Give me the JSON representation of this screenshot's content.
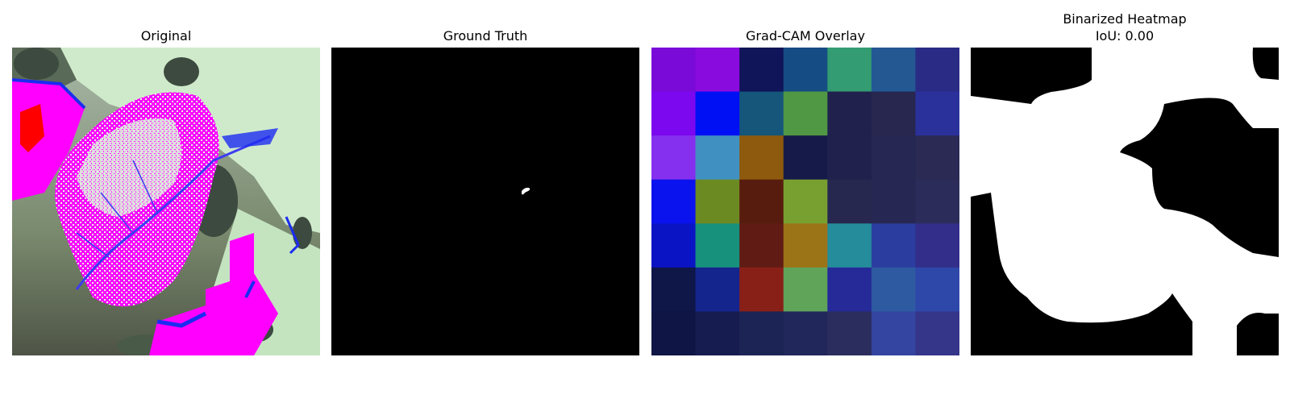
{
  "panels": [
    {
      "title": "Original"
    },
    {
      "title": "Ground Truth"
    },
    {
      "title": "Grad-CAM Overlay"
    },
    {
      "title": "Binarized Heatmap",
      "subtitle": "IoU: 0.00"
    }
  ],
  "gradcam_grid": [
    [
      "#7a0ad8",
      "#8a0bde",
      "#101458",
      "#164c84",
      "#339c72",
      "#235893",
      "#2a2b85"
    ],
    [
      "#7b08ee",
      "#0010f4",
      "#15567a",
      "#509844",
      "#20214c",
      "#272750",
      "#2b319a"
    ],
    [
      "#8430ee",
      "#4190c2",
      "#8e5a0e",
      "#161a48",
      "#20214c",
      "#262752",
      "#2a2a55"
    ],
    [
      "#0a12ee",
      "#6c8a22",
      "#581c0e",
      "#78a030",
      "#272850",
      "#262752",
      "#2c2c5b"
    ],
    [
      "#0a14c4",
      "#17907c",
      "#601c14",
      "#9c7418",
      "#248c9a",
      "#2b3ea0",
      "#322e8a"
    ],
    [
      "#0f1648",
      "#15258e",
      "#882018",
      "#60a45a",
      "#262a98",
      "#2d5aa0",
      "#2e48aa"
    ],
    [
      "#0f1544",
      "#171c50",
      "#1c2456",
      "#21275a",
      "#2a2d5e",
      "#3345a0",
      "#35358a"
    ]
  ],
  "colors": {
    "magenta": "#ff00ff",
    "mint": "#c8ecc8",
    "blue": "#1b2cf0",
    "red": "#ff0000",
    "dark": "#3c4a40"
  }
}
